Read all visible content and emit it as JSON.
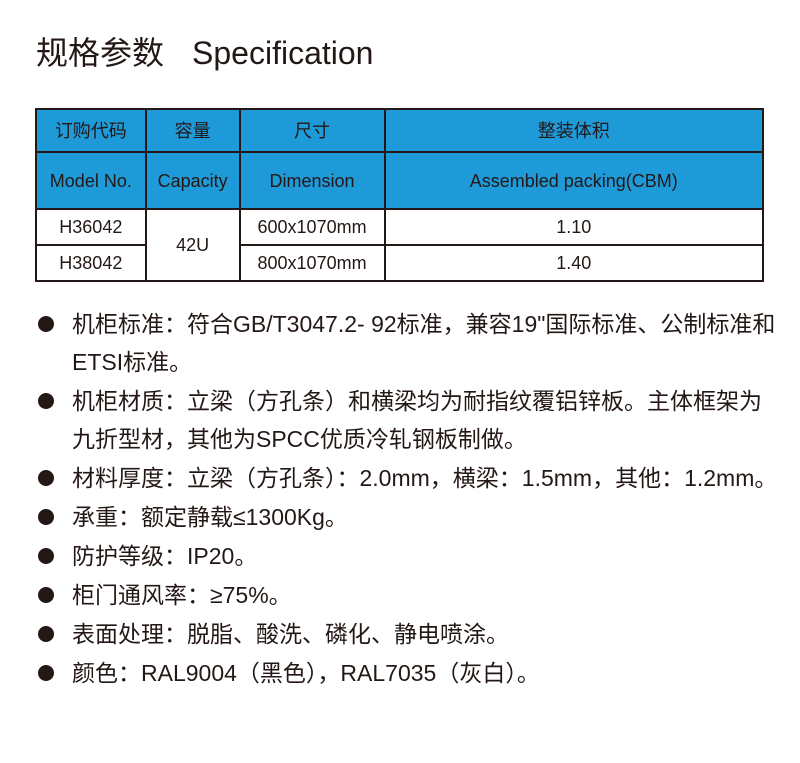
{
  "title": {
    "zh": "规格参数",
    "en": "Specification"
  },
  "table": {
    "header_zh": [
      "订购代码",
      "容量",
      "尺寸",
      "整装体积"
    ],
    "header_en": [
      "Model No.",
      "Capacity",
      "Dimension",
      "Assembled packing(CBM)"
    ],
    "capacity": "42U",
    "rows": [
      {
        "model": "H36042",
        "dimension": "600x1070mm",
        "cbm": "1.10"
      },
      {
        "model": "H38042",
        "dimension": "800x1070mm",
        "cbm": "1.40"
      }
    ],
    "header_color": "#1f9ad8"
  },
  "specs": [
    "机柜标准：符合GB/T3047.2- 92标准，兼容19\"国际标准、公制标准和ETSI标准。",
    "机柜材质：立梁（方孔条）和横梁均为耐指纹覆铝锌板。主体框架为九折型材，其他为SPCC优质冷轧钢板制做。",
    "材料厚度：立梁（方孔条）：2.0mm，横梁：1.5mm，其他：1.2mm。",
    "承重：额定静载≤1300Kg。",
    "防护等级：IP20。",
    "柜门通风率：≥75%。",
    "表面处理：脱脂、酸洗、磷化、静电喷涂。",
    "颜色：RAL9004（黑色），RAL7035（灰白）。"
  ]
}
